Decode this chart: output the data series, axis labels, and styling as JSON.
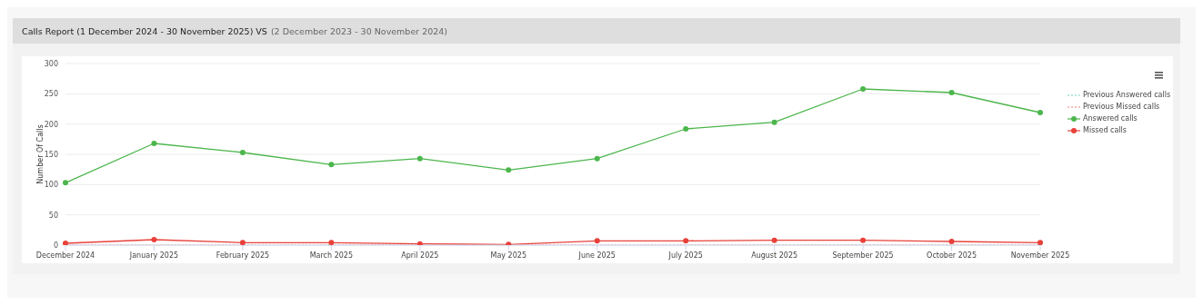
{
  "chart_data": {
    "type": "line",
    "title": "Calls Report (1 December 2024 - 30 November 2025) VS",
    "subtitle": "(2 December 2023 - 30 November 2024)",
    "ylabel": "Number Of Calls",
    "categories": [
      "December 2024",
      "January 2025",
      "February 2025",
      "March 2025",
      "April 2025",
      "May 2025",
      "June 2025",
      "July 2025",
      "August 2025",
      "September 2025",
      "October 2025",
      "November 2025"
    ],
    "series": [
      {
        "name": "Previous Answered calls",
        "color": "#6fd6c0",
        "line_style": "dotted",
        "marker": "none",
        "values": [
          null,
          null,
          null,
          null,
          null,
          null,
          null,
          null,
          null,
          null,
          null,
          null
        ]
      },
      {
        "name": "Previous Missed calls",
        "color": "#f07f7a",
        "line_style": "dotted",
        "marker": "none",
        "values": [
          0,
          0,
          0,
          0,
          0,
          0,
          0,
          0,
          0,
          0,
          0,
          0
        ]
      },
      {
        "name": "Answered calls",
        "color": "#4cb64c",
        "line_style": "solid",
        "marker": "circle",
        "values": [
          103,
          168,
          153,
          133,
          143,
          124,
          143,
          192,
          203,
          258,
          252,
          219
        ]
      },
      {
        "name": "Missed calls",
        "color": "#e8413a",
        "line_style": "solid",
        "marker": "circle",
        "values": [
          3,
          9,
          4,
          4,
          2,
          1,
          7,
          7,
          8,
          8,
          6,
          4
        ]
      }
    ],
    "ylim": [
      0,
      300
    ],
    "yticks": [
      0,
      50,
      100,
      150,
      200,
      250,
      300
    ],
    "grid": "y",
    "legend": "right"
  }
}
